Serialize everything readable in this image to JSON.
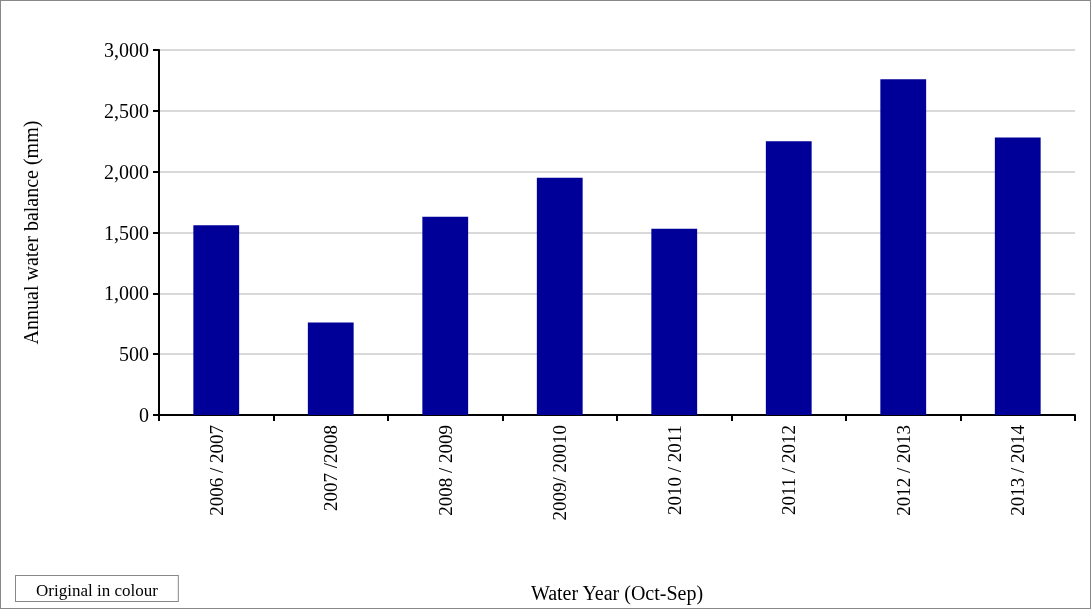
{
  "chart_data": {
    "type": "bar",
    "xlabel": "Water Year (Oct-Sep)",
    "ylabel": "Annual water balance (mm)",
    "categories": [
      "2006 / 2007",
      "2007 /2008",
      "2008 / 2009",
      "2009/ 20010",
      "2010 / 2011",
      "2011 / 2012",
      "2012 / 2013",
      "2013 / 2014"
    ],
    "values": [
      1560,
      760,
      1630,
      1950,
      1530,
      2250,
      2760,
      2280
    ],
    "color": "#000099",
    "ylim": [
      0,
      3000
    ],
    "yticks": [
      0,
      500,
      {
        "value": 1000,
        "label": "1,000"
      },
      {
        "value": 1500,
        "label": "1,500"
      },
      {
        "value": 2000,
        "label": "2,000"
      },
      {
        "value": 2500,
        "label": "2,500"
      },
      {
        "value": 3000,
        "label": "3,000"
      }
    ],
    "grid": "y",
    "annotations": [
      "Original in colour"
    ]
  }
}
